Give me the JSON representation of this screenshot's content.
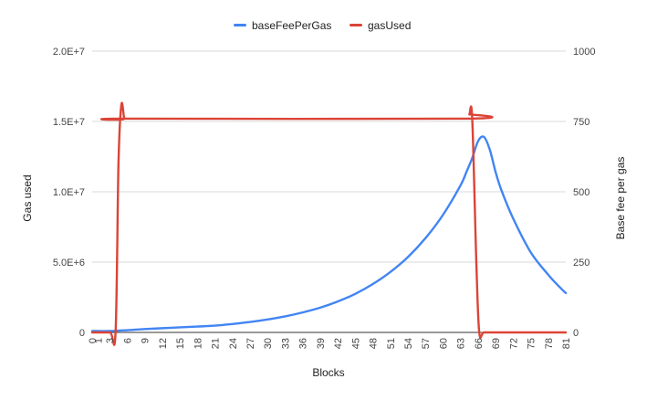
{
  "chart_data": {
    "type": "line",
    "legend_position": "top",
    "grid": true,
    "xlabel": "Blocks",
    "ylabel_left": "Gas used",
    "ylabel_right": "Base fee per gas",
    "x_ticks": [
      "0",
      "1",
      "3",
      "6",
      "9",
      "12",
      "15",
      "18",
      "21",
      "24",
      "27",
      "30",
      "33",
      "36",
      "39",
      "42",
      "45",
      "48",
      "51",
      "54",
      "57",
      "60",
      "63",
      "66",
      "69",
      "72",
      "75",
      "78",
      "81"
    ],
    "ylim_left": [
      0,
      20000000
    ],
    "yticks_left": [
      "0",
      "5.0E+6",
      "1.0E+7",
      "1.5E+7",
      "2.0E+7"
    ],
    "ylim_right": [
      0,
      1000
    ],
    "yticks_right": [
      "0",
      "250",
      "500",
      "750",
      "1000"
    ],
    "series": [
      {
        "name": "baseFeePerGas",
        "color": "#4285f4",
        "axis": "right",
        "x": [
          0,
          3,
          6,
          9,
          12,
          15,
          18,
          21,
          24,
          27,
          30,
          33,
          36,
          39,
          42,
          45,
          48,
          51,
          54,
          57,
          60,
          63,
          64,
          65,
          66,
          67,
          68,
          69,
          70,
          72,
          75,
          78,
          80,
          81
        ],
        "y": [
          5,
          5,
          8,
          12,
          15,
          18,
          21,
          24,
          30,
          37,
          46,
          57,
          71,
          88,
          110,
          137,
          172,
          215,
          268,
          335,
          418,
          523,
          570,
          620,
          680,
          695,
          650,
          570,
          505,
          405,
          285,
          205,
          160,
          140
        ]
      },
      {
        "name": "gasUsed",
        "color": "#db4437",
        "axis": "left",
        "x": [
          0,
          3,
          4,
          4.5,
          5,
          5.5,
          6,
          64,
          64.5,
          65,
          65.7,
          66.2,
          67,
          69,
          72,
          75,
          78,
          81
        ],
        "y": [
          0,
          0,
          0,
          12000000,
          16200000,
          15200000,
          15200000,
          15200000,
          15500000,
          15200000,
          5000000,
          0,
          0,
          0,
          0,
          0,
          0,
          0
        ]
      }
    ]
  }
}
